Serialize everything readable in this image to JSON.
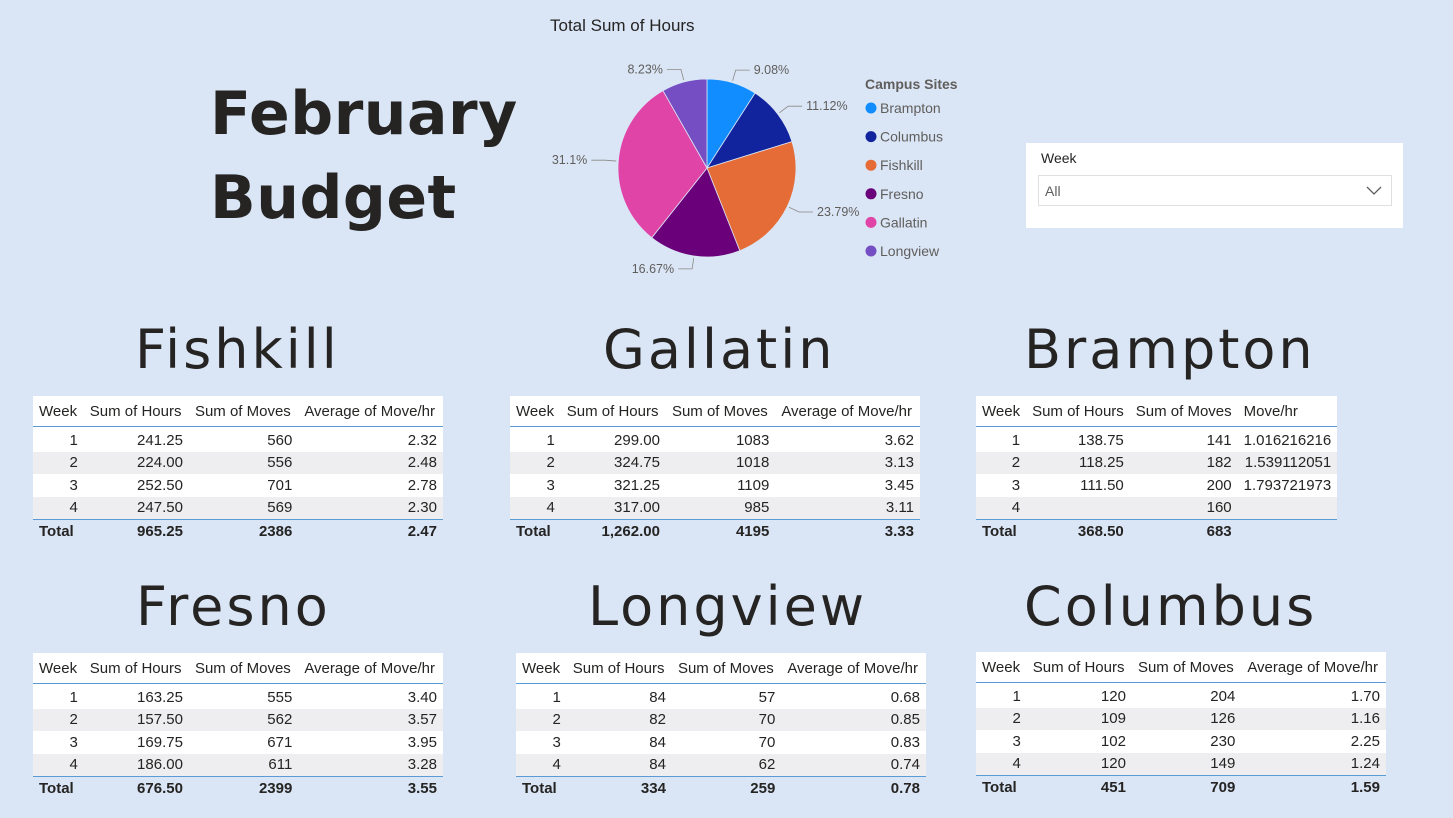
{
  "page_title": {
    "line1": "February",
    "line2": "Budget"
  },
  "chart_data": {
    "type": "pie",
    "title": "Total Sum of Hours",
    "legend_title": "Campus Sites",
    "legend_position": "right",
    "slices": [
      {
        "label": "Brampton",
        "value": 9.08,
        "display": "9.08%",
        "color": "#118dff"
      },
      {
        "label": "Columbus",
        "value": 11.12,
        "display": "11.12%",
        "color": "#12239e"
      },
      {
        "label": "Fishkill",
        "value": 23.79,
        "display": "23.79%",
        "color": "#e66c37"
      },
      {
        "label": "Fresno",
        "value": 16.67,
        "display": "16.67%",
        "color": "#6b007b"
      },
      {
        "label": "Gallatin",
        "value": 31.1,
        "display": "31.1%",
        "color": "#e044a7"
      },
      {
        "label": "Longview",
        "value": 8.23,
        "display": "8.23%",
        "color": "#744ec2"
      }
    ]
  },
  "slicer": {
    "label": "Week",
    "value": "All",
    "icon": "chevron-down-icon"
  },
  "tables": [
    {
      "id": "fishkill",
      "title": "Fishkill",
      "headers": [
        "Week",
        "Sum of Hours",
        "Sum of Moves",
        "Average of Move/hr"
      ],
      "rows": [
        [
          "1",
          "241.25",
          "560",
          "2.32"
        ],
        [
          "2",
          "224.00",
          "556",
          "2.48"
        ],
        [
          "3",
          "252.50",
          "701",
          "2.78"
        ],
        [
          "4",
          "247.50",
          "569",
          "2.30"
        ]
      ],
      "total": [
        "Total",
        "965.25",
        "2386",
        "2.47"
      ]
    },
    {
      "id": "gallatin",
      "title": "Gallatin",
      "headers": [
        "Week",
        "Sum of Hours",
        "Sum of Moves",
        "Average of Move/hr"
      ],
      "rows": [
        [
          "1",
          "299.00",
          "1083",
          "3.62"
        ],
        [
          "2",
          "324.75",
          "1018",
          "3.13"
        ],
        [
          "3",
          "321.25",
          "1109",
          "3.45"
        ],
        [
          "4",
          "317.00",
          "985",
          "3.11"
        ]
      ],
      "total": [
        "Total",
        "1,262.00",
        "4195",
        "3.33"
      ]
    },
    {
      "id": "brampton",
      "title": "Brampton",
      "headers": [
        "Week",
        "Sum of Hours",
        "Sum of Moves",
        "Move/hr"
      ],
      "rows": [
        [
          "1",
          "138.75",
          "141",
          "1.016216216"
        ],
        [
          "2",
          "118.25",
          "182",
          "1.539112051"
        ],
        [
          "3",
          "111.50",
          "200",
          "1.793721973"
        ],
        [
          "4",
          "",
          "160",
          ""
        ]
      ],
      "total": [
        "Total",
        "368.50",
        "683",
        ""
      ]
    },
    {
      "id": "fresno",
      "title": "Fresno",
      "headers": [
        "Week",
        "Sum of Hours",
        "Sum of Moves",
        "Average of Move/hr"
      ],
      "rows": [
        [
          "1",
          "163.25",
          "555",
          "3.40"
        ],
        [
          "2",
          "157.50",
          "562",
          "3.57"
        ],
        [
          "3",
          "169.75",
          "671",
          "3.95"
        ],
        [
          "4",
          "186.00",
          "611",
          "3.28"
        ]
      ],
      "total": [
        "Total",
        "676.50",
        "2399",
        "3.55"
      ]
    },
    {
      "id": "longview",
      "title": "Longview",
      "headers": [
        "Week",
        "Sum of Hours",
        "Sum of Moves",
        "Average of Move/hr"
      ],
      "rows": [
        [
          "1",
          "84",
          "57",
          "0.68"
        ],
        [
          "2",
          "82",
          "70",
          "0.85"
        ],
        [
          "3",
          "84",
          "70",
          "0.83"
        ],
        [
          "4",
          "84",
          "62",
          "0.74"
        ]
      ],
      "total": [
        "Total",
        "334",
        "259",
        "0.78"
      ]
    },
    {
      "id": "columbus",
      "title": "Columbus",
      "headers": [
        "Week",
        "Sum of Hours",
        "Sum of Moves",
        "Average of Move/hr"
      ],
      "rows": [
        [
          "1",
          "120",
          "204",
          "1.70"
        ],
        [
          "2",
          "109",
          "126",
          "1.16"
        ],
        [
          "3",
          "102",
          "230",
          "2.25"
        ],
        [
          "4",
          "120",
          "149",
          "1.24"
        ]
      ],
      "total": [
        "Total",
        "451",
        "709",
        "1.59"
      ]
    }
  ]
}
